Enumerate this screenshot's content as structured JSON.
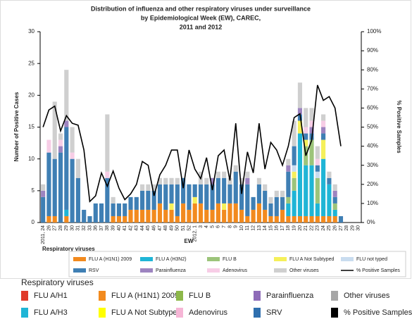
{
  "chart_data": {
    "type": "bar",
    "title": [
      "Distribution of influenza and other respiratory viruses under surveillance",
      "by Epidemiological Week (EW), CAREC,",
      "2011 and 2012"
    ],
    "x_label": "EW",
    "y_label": "Number of Positive Cases",
    "y2_label": "% Positive Samples",
    "categories": [
      "2011, 24",
      "26",
      "27",
      "28",
      "29",
      "30",
      "31",
      "32",
      "33",
      "36",
      "37",
      "38",
      "39",
      "40",
      "41",
      "42",
      "43",
      "44",
      "45",
      "46",
      "47",
      "48",
      "49",
      "50",
      "51",
      "52",
      "2012, 1",
      "3",
      "4",
      "5",
      "6",
      "7",
      "8",
      "9",
      "10",
      "11",
      "12",
      "13",
      "14",
      "15",
      "16",
      "17",
      "18",
      "19",
      "20",
      "21",
      "22",
      "23",
      "24",
      "25",
      "26",
      "27",
      "28",
      "29",
      "30"
    ],
    "ylim": [
      0,
      30
    ],
    "yticks": [
      0,
      5,
      10,
      15,
      20,
      25,
      30
    ],
    "y2lim": [
      0,
      100
    ],
    "y2ticks": [
      {
        "value": 0,
        "label": "0%"
      },
      {
        "value": 10,
        "label": "10%"
      },
      {
        "value": 20,
        "label": "20%"
      },
      {
        "value": 30,
        "label": "30%"
      },
      {
        "value": 40,
        "label": "40%"
      },
      {
        "value": 50,
        "label": "50%"
      },
      {
        "value": 60,
        "label": "60%"
      },
      {
        "value": 70,
        "label": "70%"
      },
      {
        "value": 80,
        "label": "80%"
      },
      {
        "value": 90,
        "label": "90%"
      },
      {
        "value": 100,
        "label": "100%"
      }
    ],
    "series": [
      {
        "name": "FLU A (H1N1) 2009",
        "color": "#f28a1e",
        "values": [
          0,
          1,
          1,
          0,
          1,
          0,
          0,
          0,
          0,
          0,
          0,
          0,
          1,
          1,
          1,
          2,
          2,
          2,
          2,
          2,
          3,
          2,
          2,
          1,
          3,
          2,
          3,
          3,
          2,
          2,
          3,
          2,
          3,
          3,
          2,
          1,
          2,
          3,
          2,
          1,
          1,
          2,
          1,
          1,
          1,
          1,
          1,
          1,
          1,
          1,
          1,
          0,
          0,
          0,
          0
        ]
      },
      {
        "name": "FLU A (H3N2)",
        "color": "#1fb5d6",
        "values": [
          0,
          0,
          0,
          0,
          1,
          0,
          0,
          0,
          0,
          0,
          0,
          0,
          0,
          0,
          0,
          0,
          0,
          0,
          0,
          0,
          0,
          0,
          0,
          0,
          0,
          0,
          0,
          0,
          0,
          0,
          0,
          0,
          0,
          0,
          0,
          0,
          0,
          0,
          0,
          0,
          0,
          0,
          2,
          4,
          13,
          8,
          8,
          2,
          9,
          5,
          1,
          0,
          0,
          0,
          0
        ]
      },
      {
        "name": "FLU B",
        "color": "#9cc47a",
        "values": [
          0,
          0,
          0,
          0,
          0,
          0,
          0,
          0,
          0,
          0,
          0,
          0,
          0,
          0,
          0,
          0,
          0,
          0,
          0,
          0,
          0,
          0,
          0,
          0,
          0,
          0,
          0,
          0,
          0,
          0,
          0,
          0,
          0,
          0,
          0,
          0,
          0,
          0,
          0,
          0,
          0,
          0,
          1,
          2,
          0,
          3,
          4,
          4,
          0,
          0,
          1,
          0,
          0,
          0,
          0
        ]
      },
      {
        "name": "FLU A Not Subtyped",
        "color": "#f5f05a",
        "values": [
          0,
          0,
          0,
          0,
          0,
          0,
          0,
          0,
          0,
          0,
          0,
          0,
          0,
          0,
          0,
          0,
          0,
          0,
          0,
          0,
          0,
          0,
          1,
          0,
          0,
          0,
          1,
          0,
          0,
          0,
          0,
          1,
          0,
          0,
          0,
          0,
          0,
          0,
          0,
          0,
          0,
          0,
          0,
          1,
          2,
          1,
          0,
          0,
          3,
          0,
          0,
          0,
          0,
          0,
          0
        ]
      },
      {
        "name": "FLU not typed",
        "color": "#c9dcef",
        "values": [
          0,
          0,
          0,
          0,
          0,
          0,
          0,
          0,
          0,
          0,
          0,
          0,
          0,
          0,
          0,
          0,
          0,
          0,
          0,
          0,
          0,
          0,
          0,
          0,
          0,
          0,
          0,
          0,
          0,
          0,
          0,
          0,
          0,
          0,
          0,
          0,
          0,
          0,
          0,
          0,
          0,
          0,
          0,
          1,
          0,
          0,
          0,
          1,
          0,
          0,
          0,
          0,
          0,
          0,
          0
        ]
      },
      {
        "name": "RSV",
        "color": "#3f7fb4",
        "values": [
          4,
          10,
          9,
          11,
          13,
          10,
          7,
          2,
          1,
          3,
          3,
          7,
          2,
          2,
          2,
          2,
          2,
          3,
          3,
          3,
          3,
          4,
          3,
          5,
          4,
          4,
          2,
          3,
          4,
          4,
          4,
          4,
          3,
          5,
          4,
          5,
          2,
          3,
          3,
          2,
          3,
          2,
          4,
          3,
          1,
          1,
          1,
          1,
          1,
          1,
          1,
          1,
          0,
          0,
          0
        ]
      },
      {
        "name": "Parainfluenza",
        "color": "#9d84c0",
        "values": [
          1,
          0,
          0,
          1,
          1,
          0,
          0,
          0,
          0,
          0,
          0,
          0,
          0,
          0,
          0,
          0,
          0,
          0,
          0,
          0,
          0,
          0,
          0,
          0,
          0,
          0,
          0,
          0,
          0,
          1,
          0,
          0,
          0,
          0,
          0,
          1,
          0,
          0,
          0,
          0,
          0,
          0,
          1,
          0,
          1,
          0,
          1,
          0,
          1,
          0,
          1,
          0,
          0,
          0,
          0
        ]
      },
      {
        "name": "Adenovirus",
        "color": "#f7cde6",
        "values": [
          0,
          2,
          0,
          1,
          0,
          1,
          0,
          0,
          0,
          0,
          0,
          1,
          0,
          0,
          0,
          0,
          0,
          0,
          0,
          0,
          0,
          0,
          0,
          0,
          0,
          0,
          0,
          0,
          0,
          0,
          0,
          0,
          0,
          0,
          0,
          0,
          0,
          0,
          0,
          0,
          0,
          0,
          0,
          0,
          0,
          1,
          1,
          1,
          1,
          0,
          0,
          0,
          0,
          0,
          0
        ]
      },
      {
        "name": "Other viruses",
        "color": "#cfcfcf",
        "values": [
          1,
          0,
          9,
          1,
          8,
          4,
          3,
          0,
          0,
          0,
          0,
          9,
          1,
          0,
          0,
          0,
          0,
          1,
          1,
          1,
          1,
          1,
          1,
          1,
          0,
          0,
          0,
          2,
          1,
          0,
          1,
          1,
          1,
          1,
          1,
          1,
          0,
          1,
          1,
          1,
          1,
          1,
          1,
          4,
          4,
          3,
          2,
          2,
          1,
          1,
          1,
          0,
          0,
          0,
          0
        ]
      },
      {
        "name": "% Positive Samples",
        "color": "#000000",
        "axis": "y2",
        "values": [
          50,
          59,
          61,
          48,
          56,
          52,
          51,
          38,
          11,
          14,
          26,
          19,
          27,
          18,
          12,
          15,
          20,
          32,
          30,
          14,
          25,
          30,
          38,
          38,
          18,
          38,
          28,
          23,
          34,
          17,
          35,
          38,
          22,
          52,
          15,
          37,
          26,
          52,
          28,
          42,
          38,
          30,
          40,
          55,
          57,
          35,
          43,
          72,
          64,
          66,
          60,
          40,
          null,
          null,
          null
        ]
      }
    ],
    "key_legend": {
      "title": "Respiratory viruses",
      "items": [
        {
          "name": "FLU A/H1",
          "color": "#e03a2a"
        },
        {
          "name": "FLU A (H1N1) 2009",
          "color": "#f28a1e"
        },
        {
          "name": "FLU B",
          "color": "#8db84a"
        },
        {
          "name": "Parainfluenza",
          "color": "#8e6bb8"
        },
        {
          "name": "Other viruses",
          "color": "#a6a6a6"
        },
        {
          "name": "FLU A/H3",
          "color": "#1fb5d6"
        },
        {
          "name": "FLU A Not Subtyped",
          "color": "#ffff00"
        },
        {
          "name": "Adenovirus",
          "color": "#f6b6d6"
        },
        {
          "name": "SRV",
          "color": "#2f6fae"
        },
        {
          "name": "% Positive Samples",
          "color": "#000000"
        }
      ]
    }
  }
}
